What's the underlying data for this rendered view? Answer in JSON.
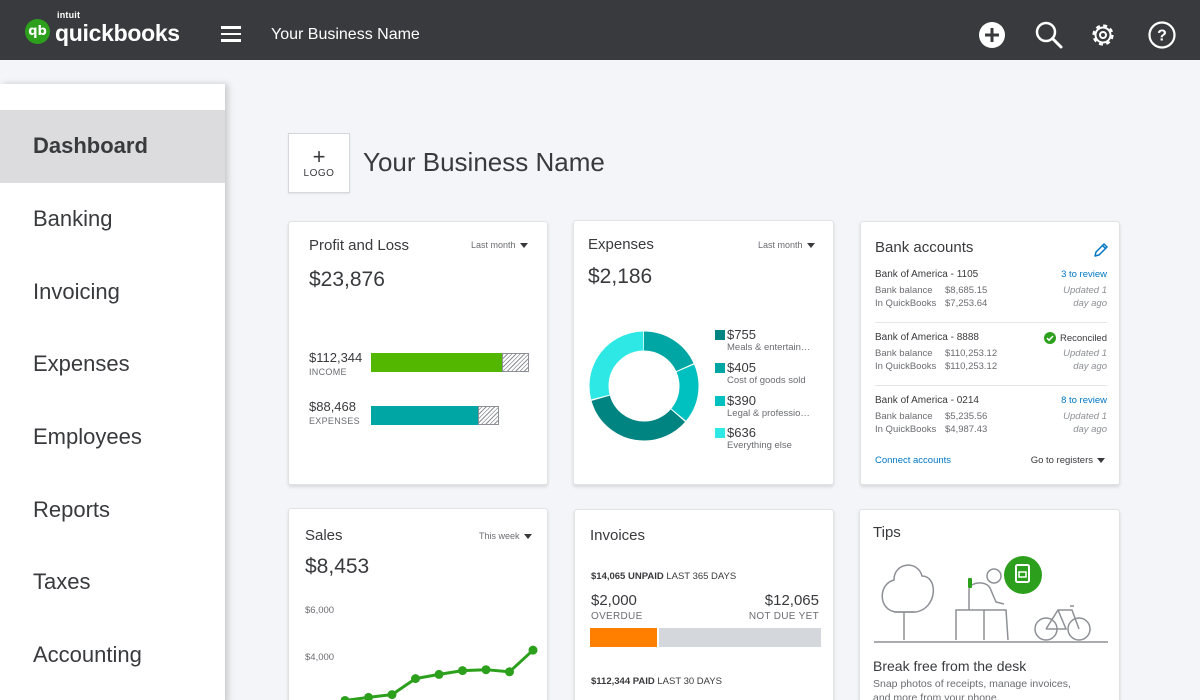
{
  "app": {
    "logo_intuit": "intuit",
    "logo_brand": "quickbooks",
    "logo_mark": "qb",
    "business_name": "Your Business Name",
    "brand_color": "#2ca01c",
    "topbar_icons": [
      "plus-circle-icon",
      "search-icon",
      "gear-icon",
      "help-icon"
    ]
  },
  "sidebar": {
    "items": [
      {
        "label": "Dashboard",
        "active": true
      },
      {
        "label": "Banking"
      },
      {
        "label": "Invoicing"
      },
      {
        "label": "Expenses"
      },
      {
        "label": "Employees"
      },
      {
        "label": "Reports"
      },
      {
        "label": "Taxes"
      },
      {
        "label": "Accounting"
      }
    ]
  },
  "header": {
    "logo_plus": "+",
    "logo_label": "LOGO",
    "title": "Your Business Name"
  },
  "profit_loss": {
    "title": "Profit and Loss",
    "filter": "Last month",
    "total": "$23,876",
    "income_value": "$112,344",
    "income_label": "INCOME",
    "income_color": "#53b700",
    "income_fraction": 0.83,
    "expenses_value": "$88,468",
    "expenses_label": "EXPENSES",
    "expenses_color": "#00a6a4",
    "expenses_fraction": 0.68
  },
  "expenses": {
    "title": "Expenses",
    "filter": "Last month",
    "total": "$2,186",
    "items": [
      {
        "value": "$755",
        "label": "Meals & entertain…",
        "amount": 755,
        "color": "#008481"
      },
      {
        "value": "$405",
        "label": "Cost of goods sold",
        "amount": 405,
        "color": "#00a6a4"
      },
      {
        "value": "$390",
        "label": "Legal & professio…",
        "amount": 390,
        "color": "#00c1bf"
      },
      {
        "value": "$636",
        "label": "Everything else",
        "amount": 636,
        "color": "#2ee8e5"
      }
    ]
  },
  "bank": {
    "title": "Bank accounts",
    "accounts": [
      {
        "name": "Bank of America - 1105",
        "bank_label": "Bank balance",
        "bank_balance": "$8,685.15",
        "qb_label": "In QuickBooks",
        "qb_balance": "$7,253.64",
        "status": "3 to review",
        "updated_1": "Updated 1",
        "updated_2": "day ago"
      },
      {
        "name": "Bank of America - 8888",
        "bank_label": "Bank balance",
        "bank_balance": "$110,253.12",
        "qb_label": "In QuickBooks",
        "qb_balance": "$110,253.12",
        "status": "Reconciled",
        "updated_1": "Updated 1",
        "updated_2": "day ago"
      },
      {
        "name": "Bank of America - 0214",
        "bank_label": "Bank balance",
        "bank_balance": "$5,235.56",
        "qb_label": "In QuickBooks",
        "qb_balance": "$4,987.43",
        "status": "8 to review",
        "updated_1": "Updated 1",
        "updated_2": "day ago"
      }
    ],
    "connect": "Connect accounts",
    "registers": "Go to registers"
  },
  "sales": {
    "title": "Sales",
    "filter": "This week",
    "total": "$8,453",
    "y_labels": [
      "$6,000",
      "$4,000"
    ]
  },
  "invoices": {
    "title": "Invoices",
    "unpaid_amount": "$14,065 UNPAID",
    "unpaid_period": "LAST 365 DAYS",
    "overdue_value": "$2,000",
    "overdue_label": "OVERDUE",
    "notdue_value": "$12,065",
    "notdue_label": "NOT DUE YET",
    "overdue_color": "#ff8000",
    "notdue_color": "#d4d7dc",
    "overdue_fraction": 0.29,
    "paid_amount": "$112,344 PAID",
    "paid_period": "LAST 30 DAYS"
  },
  "tips": {
    "title": "Tips",
    "headline": "Break free from the desk",
    "body_1": "Snap photos of receipts, manage invoices,",
    "body_2": "and more from your phone."
  },
  "chart_data": {
    "type": "line",
    "title": "Sales",
    "series": [
      {
        "values": [
          2150,
          2280,
          2400,
          3080,
          3260,
          3420,
          3460,
          3370,
          4290
        ]
      }
    ],
    "ylim": [
      2000,
      7000
    ],
    "y_ticks": [
      "$6,000",
      "$4,000"
    ],
    "grid": false,
    "color": "#2ca01c"
  }
}
